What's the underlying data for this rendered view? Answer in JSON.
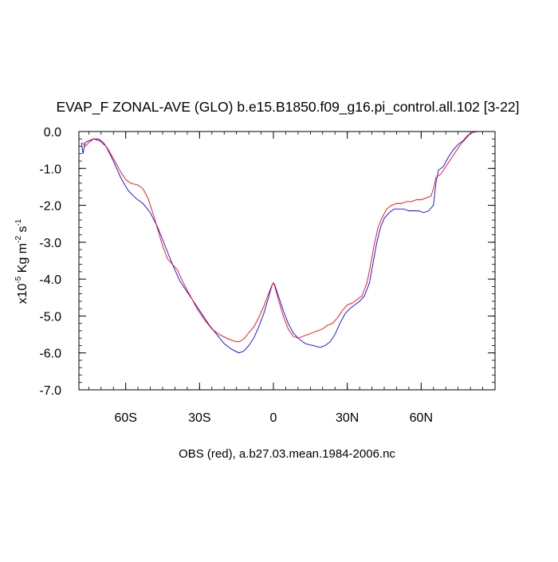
{
  "chart_data": {
    "type": "line",
    "title": "EVAP_F ZONAL-AVE (GLO) b.e15.B1850.f09_g16.pi_control.all.102 [3-22]",
    "ylabel_prefix": "x10",
    "ylabel_exp": "-5",
    "ylabel_unit1": " Kg m",
    "ylabel_exp2": "-2",
    "ylabel_unit2": " s",
    "ylabel_exp3": "-1",
    "xlabel": "OBS (red), a.b27.03.mean.1984-2006.nc",
    "xlim": [
      -79,
      90
    ],
    "ylim": [
      -7.0,
      0.0
    ],
    "grid": false,
    "y_ticks": [
      {
        "value": 0.0,
        "label": "0.0"
      },
      {
        "value": -1.0,
        "label": "-1.0"
      },
      {
        "value": -2.0,
        "label": "-2.0"
      },
      {
        "value": -3.0,
        "label": "-3.0"
      },
      {
        "value": -4.0,
        "label": "-4.0"
      },
      {
        "value": -5.0,
        "label": "-5.0"
      },
      {
        "value": -6.0,
        "label": "-6.0"
      },
      {
        "value": -7.0,
        "label": "-7.0"
      }
    ],
    "x_ticks": [
      {
        "value": -60,
        "label": "60S"
      },
      {
        "value": -30,
        "label": "30S"
      },
      {
        "value": 0,
        "label": "0"
      },
      {
        "value": 30,
        "label": "30N"
      },
      {
        "value": 60,
        "label": "60N"
      }
    ],
    "series": [
      {
        "color": "#0000ff",
        "points": [
          [
            -78,
            -0.3
          ],
          [
            -77.3,
            -0.6
          ],
          [
            -76.5,
            -0.3
          ],
          [
            -75,
            -0.25
          ],
          [
            -73,
            -0.2
          ],
          [
            -70.5,
            -0.25
          ],
          [
            -68,
            -0.4
          ],
          [
            -65,
            -0.8
          ],
          [
            -62,
            -1.25
          ],
          [
            -59,
            -1.6
          ],
          [
            -56,
            -1.8
          ],
          [
            -53,
            -1.95
          ],
          [
            -50,
            -2.2
          ],
          [
            -47,
            -2.6
          ],
          [
            -44,
            -3.1
          ],
          [
            -41,
            -3.6
          ],
          [
            -38,
            -4.05
          ],
          [
            -35,
            -4.35
          ],
          [
            -32,
            -4.65
          ],
          [
            -29,
            -4.95
          ],
          [
            -26,
            -5.25
          ],
          [
            -23,
            -5.5
          ],
          [
            -20,
            -5.75
          ],
          [
            -17,
            -5.9
          ],
          [
            -14,
            -6.0
          ],
          [
            -12,
            -5.95
          ],
          [
            -10,
            -5.8
          ],
          [
            -8,
            -5.6
          ],
          [
            -6,
            -5.3
          ],
          [
            -4,
            -4.95
          ],
          [
            -2,
            -4.5
          ],
          [
            -0.5,
            -4.15
          ],
          [
            0,
            -4.1
          ],
          [
            0.5,
            -4.15
          ],
          [
            2,
            -4.45
          ],
          [
            4,
            -4.85
          ],
          [
            6,
            -5.2
          ],
          [
            8,
            -5.45
          ],
          [
            10,
            -5.6
          ],
          [
            13,
            -5.75
          ],
          [
            16,
            -5.8
          ],
          [
            19,
            -5.85
          ],
          [
            21,
            -5.8
          ],
          [
            23,
            -5.7
          ],
          [
            25,
            -5.5
          ],
          [
            27,
            -5.2
          ],
          [
            29,
            -4.95
          ],
          [
            31,
            -4.8
          ],
          [
            33,
            -4.7
          ],
          [
            35,
            -4.6
          ],
          [
            37,
            -4.45
          ],
          [
            39,
            -4.1
          ],
          [
            40.5,
            -3.55
          ],
          [
            42,
            -3.0
          ],
          [
            43.5,
            -2.6
          ],
          [
            45,
            -2.35
          ],
          [
            47,
            -2.2
          ],
          [
            49,
            -2.1
          ],
          [
            51,
            -2.1
          ],
          [
            53,
            -2.1
          ],
          [
            55,
            -2.15
          ],
          [
            57,
            -2.15
          ],
          [
            59,
            -2.15
          ],
          [
            61,
            -2.2
          ],
          [
            63,
            -2.15
          ],
          [
            65,
            -2.0
          ],
          [
            66,
            -1.4
          ],
          [
            67,
            -1.05
          ],
          [
            69,
            -0.95
          ],
          [
            71,
            -0.7
          ],
          [
            73,
            -0.5
          ],
          [
            75,
            -0.35
          ],
          [
            77,
            -0.25
          ],
          [
            79,
            -0.1
          ],
          [
            81,
            -0.02
          ],
          [
            83,
            0.0
          ],
          [
            85,
            0.0
          ]
        ]
      },
      {
        "color": "#ff0000",
        "points": [
          [
            -77.5,
            -0.3
          ],
          [
            -76.5,
            -0.4
          ],
          [
            -75,
            -0.3
          ],
          [
            -73,
            -0.2
          ],
          [
            -71,
            -0.2
          ],
          [
            -69,
            -0.3
          ],
          [
            -67,
            -0.5
          ],
          [
            -64,
            -0.85
          ],
          [
            -62,
            -1.1
          ],
          [
            -60,
            -1.3
          ],
          [
            -58,
            -1.4
          ],
          [
            -55,
            -1.45
          ],
          [
            -53,
            -1.55
          ],
          [
            -51,
            -1.8
          ],
          [
            -49,
            -2.2
          ],
          [
            -47,
            -2.65
          ],
          [
            -45,
            -3.1
          ],
          [
            -43,
            -3.45
          ],
          [
            -41,
            -3.6
          ],
          [
            -39,
            -3.75
          ],
          [
            -37,
            -4.05
          ],
          [
            -35,
            -4.3
          ],
          [
            -33,
            -4.55
          ],
          [
            -31,
            -4.8
          ],
          [
            -28,
            -5.1
          ],
          [
            -25,
            -5.35
          ],
          [
            -22,
            -5.5
          ],
          [
            -19,
            -5.6
          ],
          [
            -16,
            -5.68
          ],
          [
            -14,
            -5.7
          ],
          [
            -12,
            -5.62
          ],
          [
            -10,
            -5.45
          ],
          [
            -8,
            -5.3
          ],
          [
            -6,
            -5.05
          ],
          [
            -4,
            -4.75
          ],
          [
            -2,
            -4.4
          ],
          [
            -0.5,
            -4.15
          ],
          [
            0,
            -4.1
          ],
          [
            0.5,
            -4.18
          ],
          [
            2,
            -4.55
          ],
          [
            4,
            -5.0
          ],
          [
            6,
            -5.35
          ],
          [
            8,
            -5.55
          ],
          [
            10,
            -5.6
          ],
          [
            12,
            -5.55
          ],
          [
            14,
            -5.5
          ],
          [
            16,
            -5.45
          ],
          [
            18,
            -5.4
          ],
          [
            20,
            -5.35
          ],
          [
            22,
            -5.25
          ],
          [
            24,
            -5.2
          ],
          [
            26,
            -5.05
          ],
          [
            28,
            -4.85
          ],
          [
            30,
            -4.7
          ],
          [
            32,
            -4.65
          ],
          [
            34,
            -4.55
          ],
          [
            36,
            -4.45
          ],
          [
            38,
            -4.1
          ],
          [
            39.5,
            -3.6
          ],
          [
            41,
            -3.05
          ],
          [
            42.5,
            -2.6
          ],
          [
            44,
            -2.35
          ],
          [
            46,
            -2.1
          ],
          [
            48,
            -2.0
          ],
          [
            50,
            -1.95
          ],
          [
            52,
            -1.95
          ],
          [
            54,
            -1.9
          ],
          [
            56,
            -1.9
          ],
          [
            58,
            -1.85
          ],
          [
            60,
            -1.85
          ],
          [
            62,
            -1.8
          ],
          [
            64,
            -1.75
          ],
          [
            65,
            -1.55
          ],
          [
            66,
            -1.25
          ],
          [
            68,
            -1.15
          ],
          [
            70,
            -0.95
          ],
          [
            72,
            -0.75
          ],
          [
            74,
            -0.55
          ],
          [
            76,
            -0.35
          ],
          [
            78,
            -0.2
          ],
          [
            80,
            -0.05
          ],
          [
            82,
            0.0
          ],
          [
            85,
            0.0
          ]
        ]
      }
    ]
  }
}
